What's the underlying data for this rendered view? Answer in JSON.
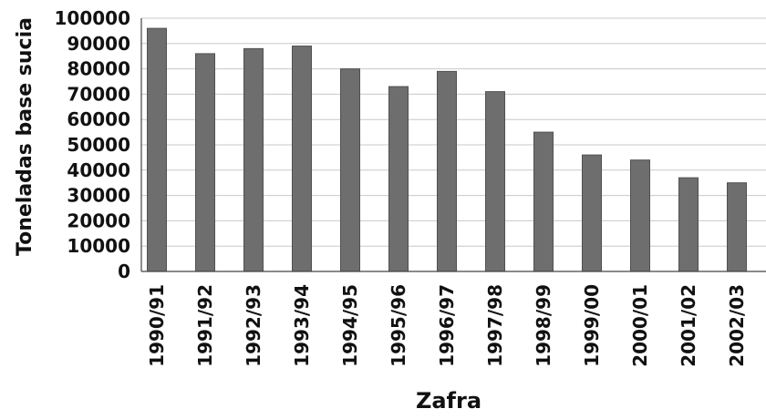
{
  "chart_data": {
    "type": "bar",
    "categories": [
      "1990/91",
      "1991/92",
      "1992/93",
      "1993/94",
      "1994/95",
      "1995/96",
      "1996/97",
      "1997/98",
      "1998/99",
      "1999/00",
      "2000/01",
      "2001/02",
      "2002/03"
    ],
    "series": [
      {
        "values": [
          96000,
          86000,
          88000,
          89000,
          80000,
          73000,
          79000,
          71000,
          55000,
          46000,
          44000,
          37000,
          35000
        ]
      }
    ],
    "xlabel": "Zafra",
    "ylabel": "Toneladas base sucia",
    "ylim": [
      0,
      100000
    ],
    "yticks": [
      "0",
      "10000",
      "20000",
      "30000",
      "40000",
      "50000",
      "60000",
      "70000",
      "80000",
      "90000",
      "100000"
    ],
    "grid": true,
    "colors": {
      "bar": "#6e6e6e",
      "grid": "#c8c8c8"
    }
  }
}
